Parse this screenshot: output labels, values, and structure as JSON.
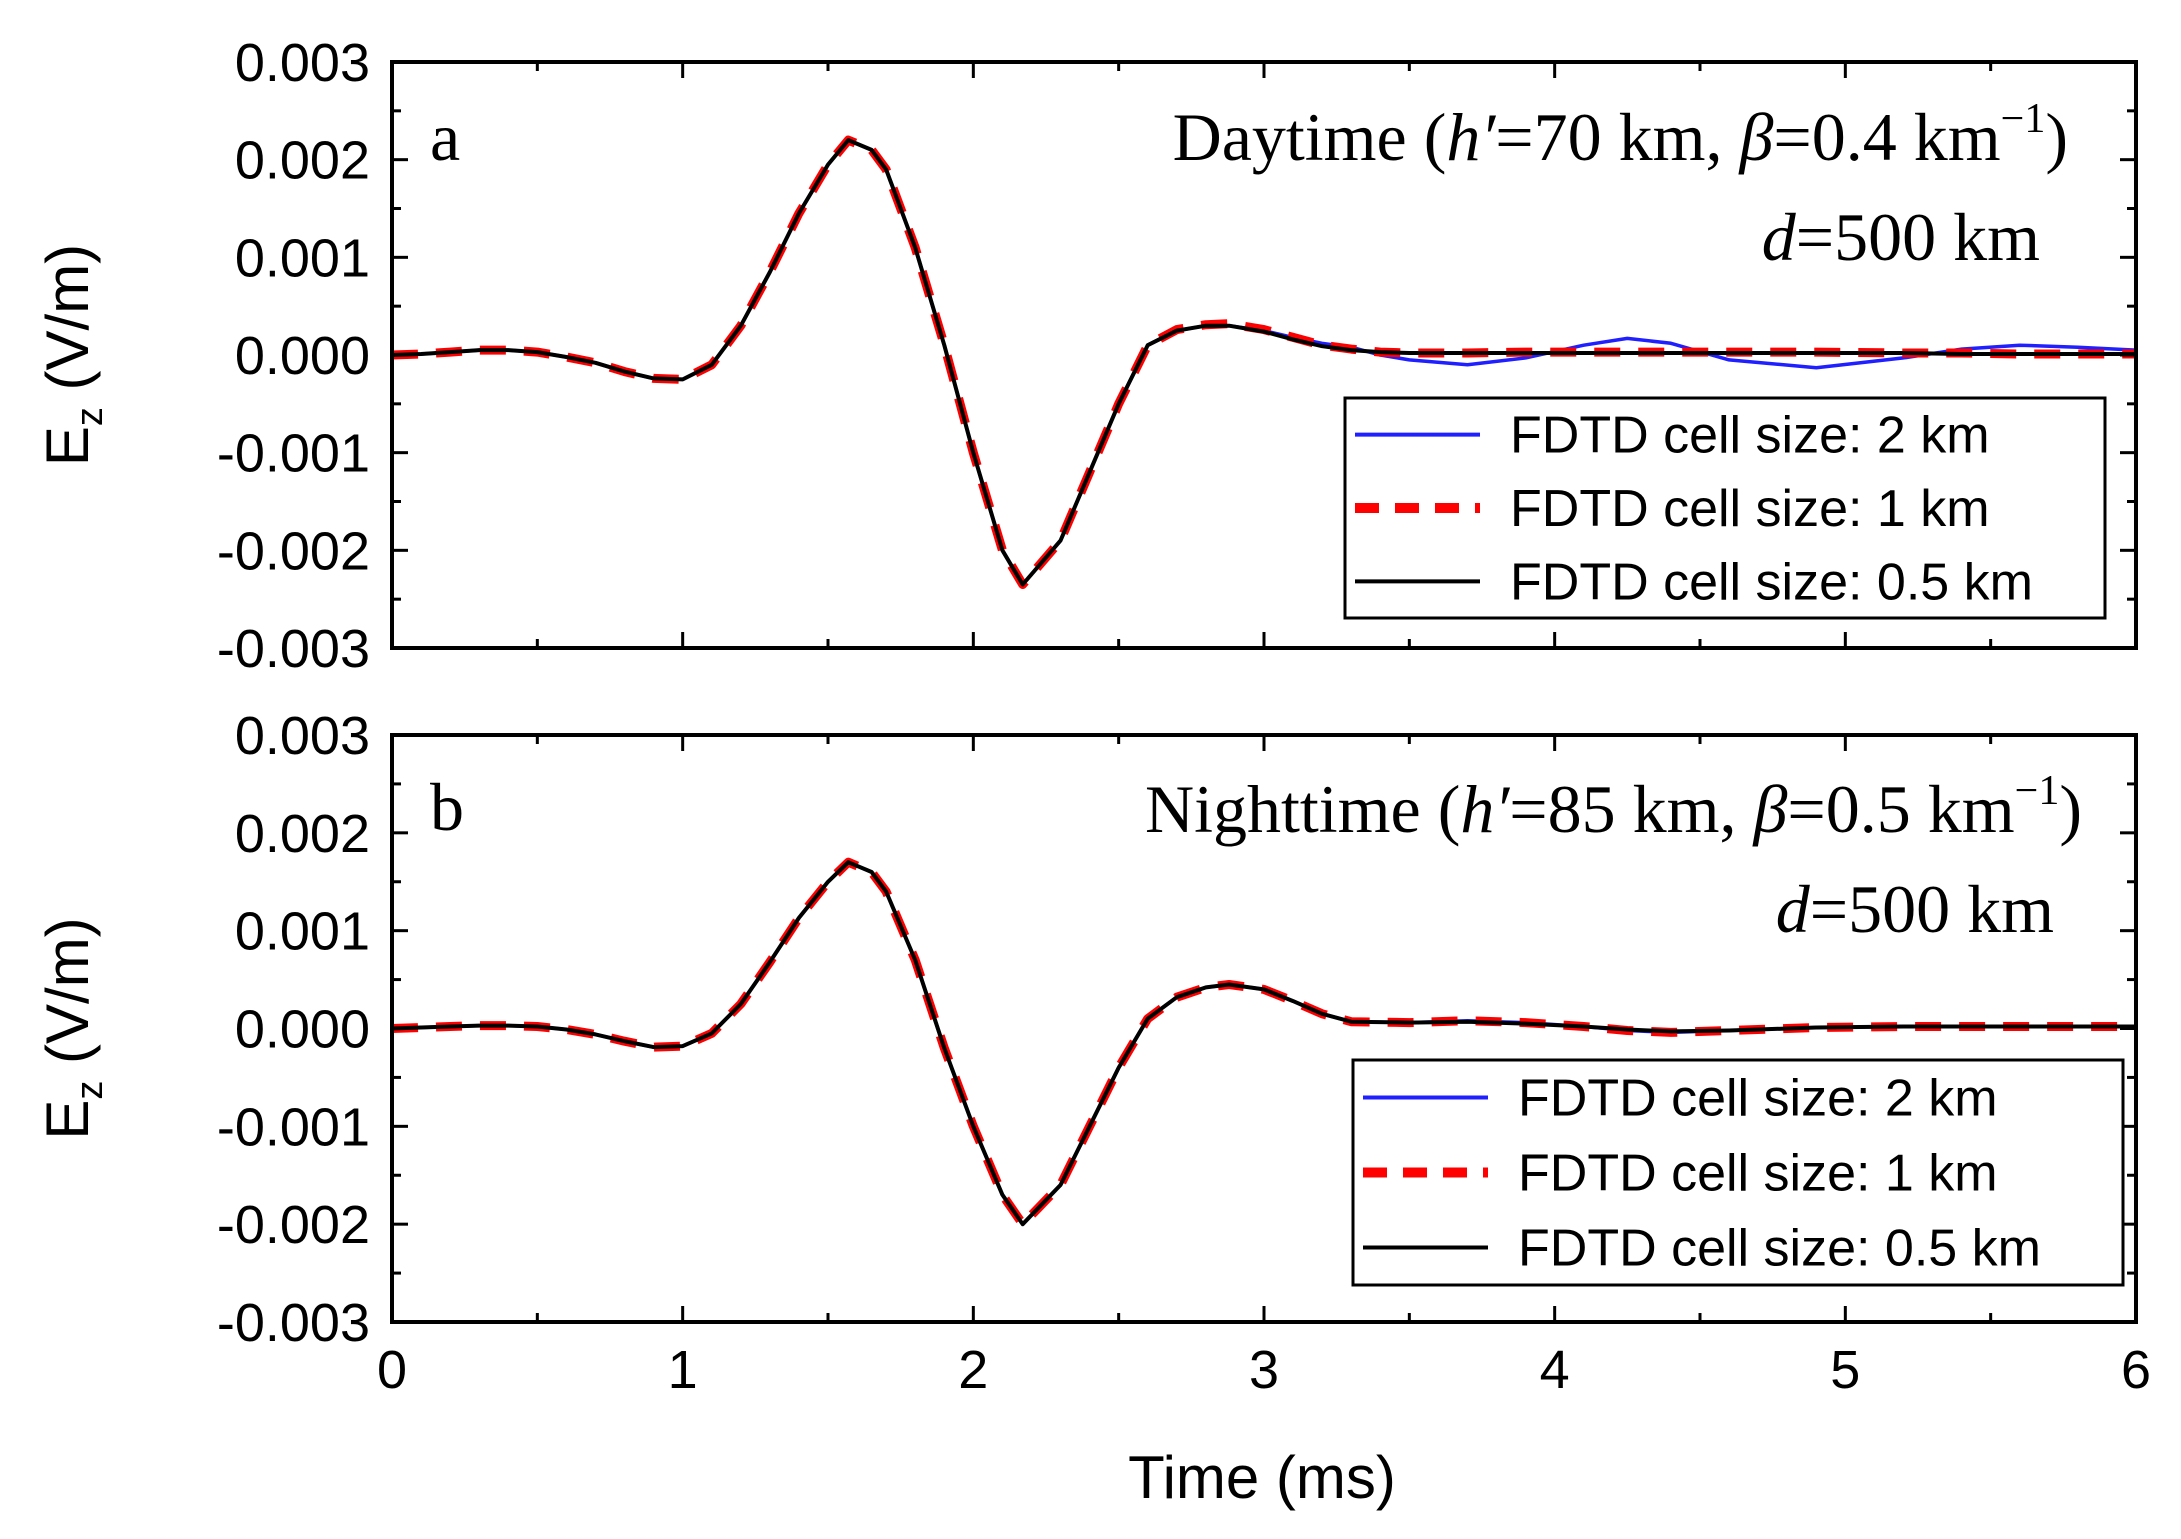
{
  "chart_data": [
    {
      "type": "line",
      "panel_label": "a",
      "title_text": {
        "condition": "Daytime",
        "open_paren": " (",
        "h_symbol": "h′",
        "h_value": "=70 km, ",
        "beta_symbol": "β",
        "beta_value": "=0.4 km",
        "superscript": "−1",
        "close_paren": ")"
      },
      "distance_text": {
        "symbol": "d",
        "value": "=500 km"
      },
      "ylabel": {
        "main": "E",
        "subscript": "z",
        "unit": " (V/m)"
      },
      "xlabel": "Time (ms)",
      "xlim": [
        0,
        6
      ],
      "ylim": [
        -0.003,
        0.003
      ],
      "x_ticks": [
        "0",
        "1",
        "2",
        "3",
        "4",
        "5",
        "6"
      ],
      "y_ticks": [
        "-0.003",
        "-0.002",
        "-0.001",
        "0.000",
        "0.001",
        "0.002",
        "0.003"
      ],
      "legend": {
        "position": "bottom-right"
      },
      "x": [
        0,
        0.1,
        0.2,
        0.3,
        0.4,
        0.5,
        0.6,
        0.7,
        0.8,
        0.9,
        1.0,
        1.1,
        1.2,
        1.3,
        1.4,
        1.5,
        1.57,
        1.65,
        1.7,
        1.8,
        1.9,
        2.0,
        2.1,
        2.17,
        2.3,
        2.4,
        2.5,
        2.6,
        2.7,
        2.8,
        2.88,
        3.0,
        3.1,
        3.2,
        3.3,
        3.4,
        3.5,
        3.7,
        3.9,
        4.1,
        4.25,
        4.4,
        4.6,
        4.9,
        5.2,
        5.4,
        5.6,
        5.8,
        6.0
      ],
      "series": [
        {
          "name": "FDTD cell size: 2 km",
          "color": "#1f1fff",
          "style": "solid",
          "values": [
            0.0,
            1e-05,
            3e-05,
            5e-05,
            5e-05,
            3e-05,
            -2e-05,
            -8e-05,
            -0.00017,
            -0.00024,
            -0.00025,
            -0.0001,
            0.0003,
            0.00085,
            0.00145,
            0.00195,
            0.0022,
            0.0021,
            0.0019,
            0.0011,
            0.0001,
            -0.001,
            -0.002,
            -0.00235,
            -0.0019,
            -0.0012,
            -0.0005,
            0.0001,
            0.00025,
            0.0003,
            0.0003,
            0.00025,
            0.00018,
            0.00012,
            8e-05,
            0.0,
            -5e-05,
            -0.0001,
            -3e-05,
            0.0001,
            0.00017,
            0.00012,
            -5e-05,
            -0.00013,
            -3e-05,
            6e-05,
            0.0001,
            8e-05,
            5e-05
          ]
        },
        {
          "name": "FDTD cell size: 1 km",
          "color": "#ff0000",
          "style": "dashed",
          "values": [
            0.0,
            1e-05,
            3e-05,
            5e-05,
            5e-05,
            3e-05,
            -2e-05,
            -8e-05,
            -0.00017,
            -0.00024,
            -0.00025,
            -0.0001,
            0.0003,
            0.00085,
            0.00145,
            0.00195,
            0.0022,
            0.0021,
            0.0019,
            0.0011,
            0.0001,
            -0.001,
            -0.002,
            -0.00235,
            -0.0019,
            -0.0012,
            -0.0005,
            0.0001,
            0.00026,
            0.00031,
            0.00032,
            0.00026,
            0.00018,
            0.0001,
            6e-05,
            3e-05,
            2e-05,
            2e-05,
            3e-05,
            3e-05,
            3e-05,
            3e-05,
            3e-05,
            3e-05,
            2e-05,
            2e-05,
            1e-05,
            1e-05,
            1e-05
          ]
        },
        {
          "name": "FDTD cell size: 0.5 km",
          "color": "#000000",
          "style": "solid",
          "values": [
            0.0,
            1e-05,
            3e-05,
            5e-05,
            5e-05,
            3e-05,
            -2e-05,
            -8e-05,
            -0.00017,
            -0.00024,
            -0.00025,
            -0.0001,
            0.0003,
            0.00085,
            0.00145,
            0.00195,
            0.0022,
            0.0021,
            0.0019,
            0.0011,
            0.0001,
            -0.001,
            -0.002,
            -0.00235,
            -0.0019,
            -0.0012,
            -0.0005,
            0.0001,
            0.00025,
            0.0003,
            0.0003,
            0.00024,
            0.00016,
            9e-05,
            5e-05,
            3e-05,
            2e-05,
            2e-05,
            2e-05,
            2e-05,
            2e-05,
            2e-05,
            2e-05,
            2e-05,
            2e-05,
            1e-05,
            1e-05,
            1e-05,
            1e-05
          ]
        }
      ]
    },
    {
      "type": "line",
      "panel_label": "b",
      "title_text": {
        "condition": "Nighttime",
        "open_paren": " (",
        "h_symbol": "h′",
        "h_value": "=85 km, ",
        "beta_symbol": "β",
        "beta_value": "=0.5 km",
        "superscript": "−1",
        "close_paren": ")"
      },
      "distance_text": {
        "symbol": "d",
        "value": "=500 km"
      },
      "ylabel": {
        "main": "E",
        "subscript": "z",
        "unit": " (V/m)"
      },
      "xlabel": "Time (ms)",
      "xlim": [
        0,
        6
      ],
      "ylim": [
        -0.003,
        0.003
      ],
      "x_ticks": [
        "0",
        "1",
        "2",
        "3",
        "4",
        "5",
        "6"
      ],
      "y_ticks": [
        "-0.003",
        "-0.002",
        "-0.001",
        "0.000",
        "0.001",
        "0.002",
        "0.003"
      ],
      "legend": {
        "position": "bottom-right"
      },
      "x": [
        0,
        0.1,
        0.2,
        0.3,
        0.4,
        0.5,
        0.6,
        0.7,
        0.8,
        0.9,
        1.0,
        1.1,
        1.2,
        1.3,
        1.4,
        1.5,
        1.57,
        1.65,
        1.7,
        1.8,
        1.9,
        2.0,
        2.1,
        2.17,
        2.3,
        2.4,
        2.5,
        2.6,
        2.7,
        2.8,
        2.88,
        3.0,
        3.1,
        3.2,
        3.3,
        3.5,
        3.7,
        3.9,
        4.1,
        4.25,
        4.4,
        4.6,
        4.9,
        5.2,
        5.4,
        5.6,
        5.8,
        6.0
      ],
      "series": [
        {
          "name": "FDTD cell size: 2 km",
          "color": "#1f1fff",
          "style": "solid",
          "values": [
            0.0,
            1e-05,
            2e-05,
            3e-05,
            3e-05,
            2e-05,
            -1e-05,
            -6e-05,
            -0.00013,
            -0.00019,
            -0.00018,
            -5e-05,
            0.00025,
            0.00068,
            0.00113,
            0.0015,
            0.0017,
            0.0016,
            0.0014,
            0.0007,
            -0.0002,
            -0.001,
            -0.0017,
            -0.002,
            -0.0016,
            -0.001,
            -0.0004,
            0.0001,
            0.00032,
            0.00042,
            0.00045,
            0.0004,
            0.00028,
            0.00015,
            7e-05,
            6e-05,
            8e-05,
            6e-05,
            2e-05,
            -2e-05,
            -4e-05,
            -2e-05,
            1e-05,
            2e-05,
            2e-05,
            2e-05,
            2e-05,
            2e-05
          ]
        },
        {
          "name": "FDTD cell size: 1 km",
          "color": "#ff0000",
          "style": "dashed",
          "values": [
            0.0,
            1e-05,
            2e-05,
            3e-05,
            3e-05,
            2e-05,
            -1e-05,
            -6e-05,
            -0.00013,
            -0.00019,
            -0.00018,
            -5e-05,
            0.00025,
            0.00068,
            0.00113,
            0.0015,
            0.0017,
            0.0016,
            0.0014,
            0.0007,
            -0.0002,
            -0.001,
            -0.0017,
            -0.002,
            -0.0016,
            -0.001,
            -0.0004,
            0.0001,
            0.00032,
            0.00042,
            0.00045,
            0.0004,
            0.00028,
            0.00015,
            7e-05,
            6e-05,
            8e-05,
            6e-05,
            2e-05,
            -2e-05,
            -4e-05,
            -2e-05,
            1e-05,
            2e-05,
            2e-05,
            2e-05,
            2e-05,
            2e-05
          ]
        },
        {
          "name": "FDTD cell size: 0.5 km",
          "color": "#000000",
          "style": "solid",
          "values": [
            0.0,
            1e-05,
            2e-05,
            3e-05,
            3e-05,
            2e-05,
            -1e-05,
            -6e-05,
            -0.00013,
            -0.00019,
            -0.00018,
            -5e-05,
            0.00025,
            0.00068,
            0.00113,
            0.0015,
            0.0017,
            0.0016,
            0.0014,
            0.0007,
            -0.0002,
            -0.001,
            -0.0017,
            -0.002,
            -0.0016,
            -0.001,
            -0.0004,
            0.0001,
            0.00032,
            0.00042,
            0.00045,
            0.0004,
            0.00028,
            0.00015,
            7e-05,
            6e-05,
            7e-05,
            5e-05,
            2e-05,
            -1e-05,
            -3e-05,
            -2e-05,
            1e-05,
            2e-05,
            2e-05,
            2e-05,
            2e-05,
            2e-05
          ]
        }
      ]
    }
  ]
}
